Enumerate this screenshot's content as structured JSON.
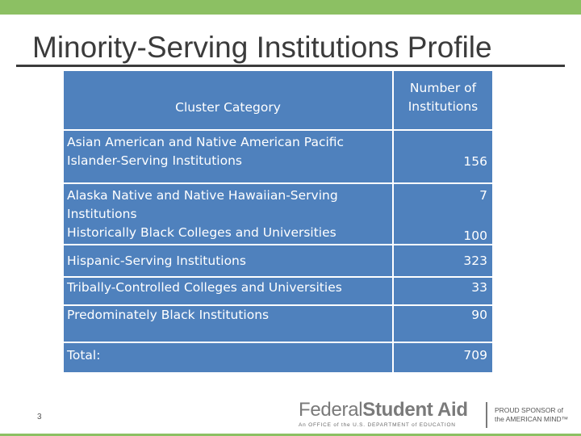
{
  "slide": {
    "title": "Minority-Serving Institutions Profile",
    "number": "3"
  },
  "table": {
    "headers": {
      "category": "Cluster Category",
      "count_line1": "Number of",
      "count_line2": "Institutions"
    },
    "rows": [
      {
        "lines": [
          "Asian American and Native American Pacific",
          "Islander-Serving Institutions"
        ],
        "value": "156"
      },
      {
        "lines": [
          "Alaska Native and Native Hawaiian-Serving",
          "Institutions"
        ],
        "value": "7"
      },
      {
        "lines": [
          "Historically Black Colleges and Universities"
        ],
        "value": "100"
      },
      {
        "lines": [
          "Hispanic-Serving Institutions"
        ],
        "value": "323"
      },
      {
        "lines": [
          "Tribally-Controlled Colleges and Universities"
        ],
        "value": "33"
      },
      {
        "lines": [
          "Predominately Black Institutions"
        ],
        "value": "90"
      },
      {
        "lines": [
          "Total:"
        ],
        "value": "709"
      }
    ]
  },
  "footer": {
    "brand_part1": "Federal",
    "brand_part2": "Student Aid",
    "brand_subtitle": "An OFFICE of the U.S. DEPARTMENT of EDUCATION",
    "sponsor_line1": "PROUD SPONSOR of",
    "sponsor_line2": "the AMERICAN MIND™"
  },
  "colors": {
    "accent_green": "#8cc063",
    "table_blue": "#4f81bd",
    "title_text": "#3b3b3b"
  }
}
